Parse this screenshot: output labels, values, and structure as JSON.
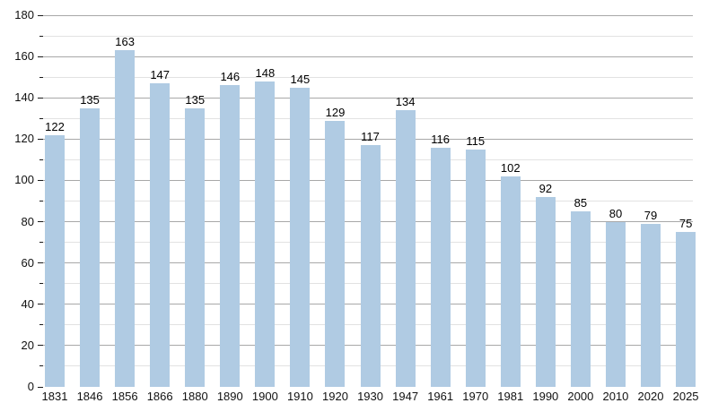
{
  "chart_data": {
    "type": "bar",
    "title": "",
    "xlabel": "",
    "ylabel": "",
    "categories": [
      "1831",
      "1846",
      "1856",
      "1866",
      "1880",
      "1890",
      "1900",
      "1910",
      "1920",
      "1930",
      "1947",
      "1961",
      "1970",
      "1981",
      "1990",
      "2000",
      "2010",
      "2020",
      "2025"
    ],
    "values": [
      122,
      135,
      163,
      147,
      135,
      146,
      148,
      145,
      129,
      117,
      134,
      116,
      115,
      102,
      92,
      85,
      80,
      79,
      75
    ],
    "value_labels_shown": true,
    "ylim": [
      0,
      180
    ],
    "ytick_major_step": 20,
    "ytick_minor_step": 10,
    "ytick_labels": [
      "0",
      "20",
      "40",
      "60",
      "80",
      "100",
      "120",
      "140",
      "160",
      "180"
    ],
    "grid": "horizontal major+minor, no vertical",
    "legend": "none",
    "colors": {
      "bar": "#b0cbe3",
      "major_grid": "#a8a8a8",
      "minor_grid": "#e2e2e2",
      "axis": "#1a1a1a",
      "text": "#111111",
      "background": "#ffffff"
    }
  }
}
